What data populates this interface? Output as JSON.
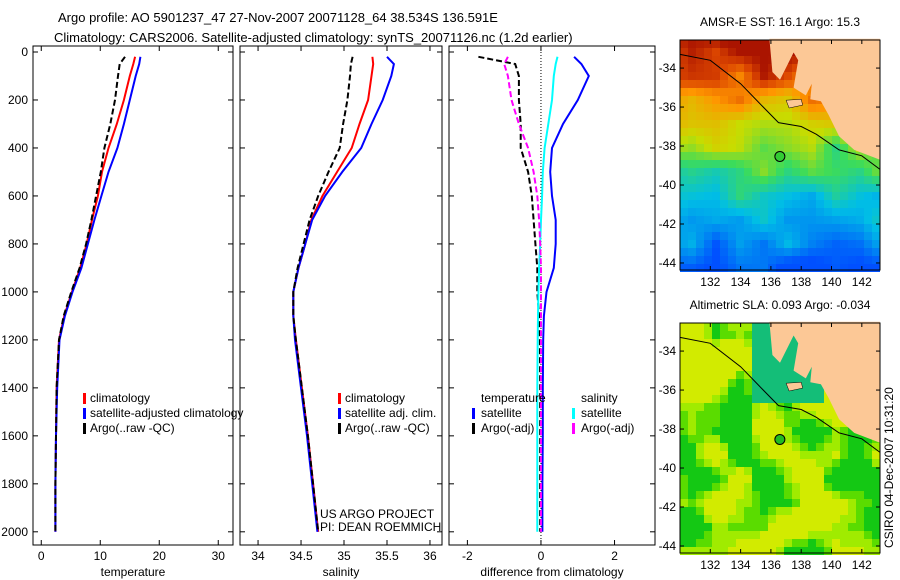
{
  "title": {
    "line1": "Argo profile: AO 5901237_47 27-Nov-2007 20071128_64 38.534S 136.591E",
    "line2": "Climatology: CARS2006. Satellite-adjusted climatology: synTS_20071126.nc (1.2d earlier)"
  },
  "side_label": "CSIRO 04-Dec-2007 10:31:20",
  "project": {
    "line1": "US ARGO PROJECT",
    "line2": "PI: DEAN ROEMMICH"
  },
  "colors": {
    "climatology": "#ff0000",
    "satellite": "#0000ff",
    "argo": "#000000",
    "sal_satellite": "#00ffff",
    "sal_argo": "#ff00ff",
    "land": "#fcc896"
  },
  "chart_data": [
    {
      "type": "line",
      "xlabel": "temperature",
      "ylabel": "",
      "xlim": [
        -1.4,
        32.5
      ],
      "ylim": [
        2055,
        -25
      ],
      "xticks": [
        0,
        10,
        20,
        30
      ],
      "yticks": [
        0,
        200,
        400,
        600,
        800,
        1000,
        1200,
        1400,
        1600,
        1800,
        2000
      ],
      "legend": {
        "placement": "center-left",
        "entries": [
          "climatology",
          "satellite-adjusted climatology",
          "Argo(..raw -QC)"
        ]
      },
      "depth": [
        20,
        50,
        100,
        200,
        300,
        400,
        500,
        600,
        700,
        800,
        900,
        1000,
        1100,
        1200,
        1400,
        1600,
        1800,
        2000
      ],
      "series": [
        {
          "name": "climatology",
          "color": "#ff0000",
          "dash": false,
          "values": [
            15.9,
            15.6,
            15.0,
            14.0,
            12.8,
            11.4,
            10.3,
            9.6,
            8.6,
            7.7,
            6.6,
            5.2,
            3.9,
            3.0,
            2.6,
            2.5,
            2.4,
            2.4
          ]
        },
        {
          "name": "satellite-adjusted climatology",
          "color": "#0000ff",
          "dash": false,
          "values": [
            16.8,
            16.6,
            16.0,
            15.0,
            14.0,
            12.9,
            11.4,
            10.2,
            9.0,
            7.9,
            6.8,
            5.3,
            4.0,
            3.1,
            2.7,
            2.5,
            2.4,
            2.4
          ]
        },
        {
          "name": "Argo(..raw -QC)",
          "color": "#000000",
          "dash": true,
          "values": [
            14.2,
            13.3,
            13.0,
            12.5,
            11.7,
            10.7,
            10.1,
            9.3,
            8.5,
            7.6,
            6.5,
            5.1,
            3.8,
            3.0,
            2.6,
            2.5,
            2.4,
            2.4
          ]
        }
      ]
    },
    {
      "type": "line",
      "xlabel": "salinity",
      "xlim": [
        33.79,
        36.14
      ],
      "ylim": [
        2055,
        -25
      ],
      "xticks": [
        34,
        34.5,
        35,
        35.5,
        36
      ],
      "legend": {
        "placement": "center-right",
        "entries": [
          "climatology",
          "satellite adj. clim.",
          "Argo(..raw -QC)"
        ]
      },
      "depth": [
        20,
        50,
        100,
        200,
        300,
        400,
        500,
        600,
        700,
        800,
        900,
        1000,
        1100,
        1200,
        1400,
        1600,
        1800,
        2000
      ],
      "series": [
        {
          "name": "climatology",
          "color": "#ff0000",
          "dash": false,
          "values": [
            35.33,
            35.34,
            35.32,
            35.28,
            35.18,
            35.09,
            34.92,
            34.75,
            34.62,
            34.55,
            34.47,
            34.41,
            34.41,
            34.44,
            34.51,
            34.58,
            34.64,
            34.7
          ]
        },
        {
          "name": "satellite adj. clim.",
          "color": "#0000ff",
          "dash": false,
          "values": [
            35.5,
            35.58,
            35.55,
            35.45,
            35.32,
            35.2,
            34.98,
            34.78,
            34.63,
            34.55,
            34.47,
            34.41,
            34.41,
            34.43,
            34.5,
            34.57,
            34.63,
            34.69
          ]
        },
        {
          "name": "Argo(..raw -QC)",
          "color": "#000000",
          "dash": true,
          "values": [
            35.1,
            35.08,
            35.07,
            35.04,
            34.99,
            34.95,
            34.82,
            34.7,
            34.6,
            34.53,
            34.46,
            34.41,
            34.41,
            34.44,
            34.51,
            34.58,
            34.64,
            34.7
          ]
        }
      ]
    },
    {
      "type": "line",
      "xlabel": "difference from climatology",
      "xlim": [
        -2.5,
        3.1
      ],
      "ylim": [
        2055,
        -25
      ],
      "xticks": [
        -2,
        0,
        2
      ],
      "legend": {
        "placement": "bottom",
        "groups": [
          {
            "title": "temperature",
            "entries": [
              "satellite",
              "Argo(-adj)"
            ]
          },
          {
            "title": "salinity",
            "entries": [
              "satellite",
              "Argo(-adj)"
            ]
          }
        ]
      },
      "depth": [
        20,
        50,
        100,
        200,
        300,
        400,
        500,
        600,
        700,
        800,
        900,
        1000,
        1100,
        1200,
        1400,
        1600,
        1800,
        2000
      ],
      "series": [
        {
          "name": "temperature satellite",
          "color": "#0000ff",
          "dash": false,
          "values": [
            0.9,
            1.1,
            1.3,
            1.0,
            0.6,
            0.3,
            0.25,
            0.3,
            0.4,
            0.4,
            0.35,
            0.15,
            0.08,
            0.06,
            0.05,
            0.05,
            0.04,
            0.04
          ]
        },
        {
          "name": "temperature Argo(-adj)",
          "color": "#000000",
          "dash": true,
          "values": [
            -1.7,
            -0.7,
            -0.6,
            -0.6,
            -0.55,
            -0.55,
            -0.35,
            -0.25,
            -0.2,
            -0.15,
            -0.1,
            -0.1,
            -0.05,
            -0.03,
            -0.02,
            -0.02,
            -0.02,
            -0.02
          ]
        },
        {
          "name": "salinity satellite",
          "color": "#00ffff",
          "dash": false,
          "values": [
            0.45,
            0.4,
            0.35,
            0.3,
            0.2,
            0.1,
            0.05,
            0.03,
            0.0,
            -0.02,
            -0.05,
            -0.07,
            -0.08,
            -0.09,
            -0.1,
            -0.1,
            -0.1,
            -0.1
          ]
        },
        {
          "name": "salinity Argo(-adj)",
          "color": "#ff00ff",
          "dash": true,
          "values": [
            -0.9,
            -1.0,
            -0.9,
            -0.8,
            -0.6,
            -0.35,
            -0.2,
            -0.1,
            -0.05,
            -0.02,
            0.0,
            0.0,
            0.0,
            0.0,
            0.0,
            0.0,
            0.0,
            0.0
          ]
        }
      ]
    },
    {
      "type": "heatmap",
      "title": "AMSR-E SST: 16.1 Argo: 15.3",
      "xlim": [
        130.0,
        143.2
      ],
      "ylim": [
        -44.36,
        -32.56
      ],
      "xticks": [
        132,
        134,
        136,
        138,
        140,
        142
      ],
      "yticks": [
        -34,
        -36,
        -38,
        -40,
        -42,
        -44
      ],
      "field": "sst",
      "argo_location": [
        136.591,
        -38.534
      ]
    },
    {
      "type": "heatmap",
      "title": "Altimetric SLA: 0.093 Argo: -0.034",
      "xlim": [
        130.0,
        143.2
      ],
      "ylim": [
        -44.36,
        -32.56
      ],
      "xticks": [
        132,
        134,
        136,
        138,
        140,
        142
      ],
      "yticks": [
        -34,
        -36,
        -38,
        -40,
        -42,
        -44
      ],
      "field": "sla",
      "argo_location": [
        136.591,
        -38.534
      ]
    }
  ]
}
